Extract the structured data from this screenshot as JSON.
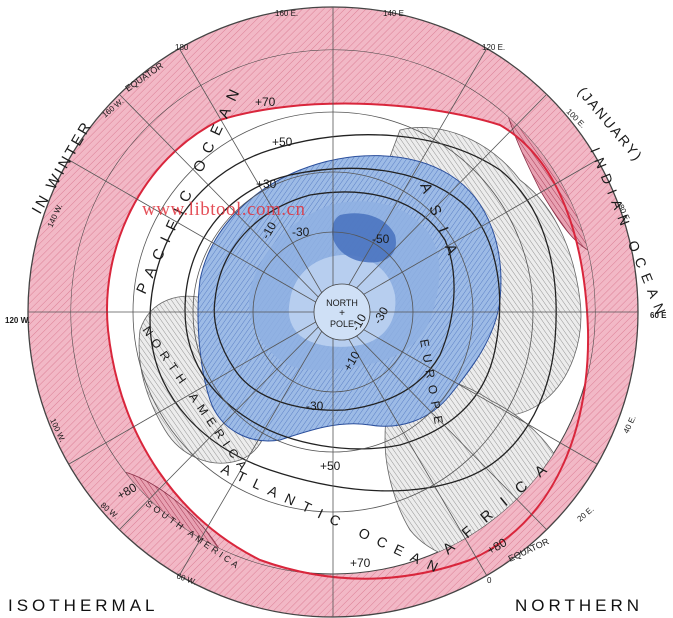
{
  "map": {
    "colors": {
      "outer_ring": "#f2b8c6",
      "outer_hatch": "#d96b84",
      "boundary_red": "#d9263c",
      "land_gray": "#d2d2d2",
      "cold_blue_light": "#bcd4f0",
      "cold_blue_mid": "#7fa4da",
      "cold_blue_dark": "#4b74c0",
      "isotherm_line": "#222222",
      "grid_line": "#555555"
    },
    "longitudes": {
      "lon_160e": "160 E.",
      "lon_140e": "140 E.",
      "lon_180": "180",
      "lon_120e": "120 E.",
      "lon_160w": "160 W.",
      "lon_100e": "100 E.",
      "lon_140w": "140 W.",
      "lon_80e": "80 E.",
      "lon_120w": "120 W.",
      "lon_60e": "60 E",
      "lon_100w": "100 W.",
      "lon_40e": "40 E.",
      "lon_80w": "80 W.",
      "lon_20e": "20 E.",
      "lon_60w": "60 W.",
      "lon_0": "0"
    },
    "labels": {
      "equator_top": "EQUATOR",
      "equator_bottom": "EQUATOR",
      "in_winter": "IN WINTER",
      "january": "(JANUARY)",
      "pacific_ocean": "PACIFIC OCEAN",
      "indian_ocean": "INDIAN OCEAN",
      "north_america": "NORTH AMERICA",
      "atlantic_ocean": "ATLANTIC OCEAN",
      "asia": "ASIA",
      "europe": "EUROPE",
      "africa": "AFRICA",
      "south_america": "SOUTH AMERICA",
      "north_pole_1": "NORTH",
      "north_pole_2": "POLE",
      "plus_sign": "+"
    },
    "isotherms": {
      "t_plus70_top": "+70",
      "t_plus50_top": "+50",
      "t_plus30": "+30",
      "t_minus10": "-10",
      "t_minus30": "-30",
      "t_minus50": "-50",
      "t_minus10b": "-10",
      "t_minus30b": "-30",
      "t_plus10": "+10",
      "t_minus30c": "-30",
      "t_plus50_bottom": "+50",
      "t_plus70_bottom": "+70",
      "t_plus80": "+80",
      "t_plus80_sa": "+80"
    }
  },
  "captions": {
    "left": "ISOTHERMAL",
    "right": "NORTHERN"
  },
  "watermark": "www.libtool.com.cn"
}
